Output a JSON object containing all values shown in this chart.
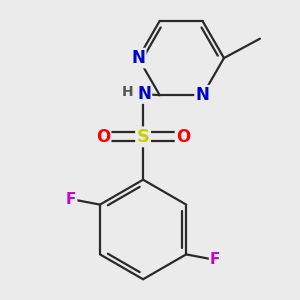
{
  "background_color": "#ebebeb",
  "atom_colors": {
    "C": "#000000",
    "N": "#0000cc",
    "O": "#ff0000",
    "S": "#cccc00",
    "F": "#cc00cc",
    "H": "#555555"
  },
  "bond_color": "#2a2a2a",
  "figsize": [
    3.0,
    3.0
  ],
  "dpi": 100
}
